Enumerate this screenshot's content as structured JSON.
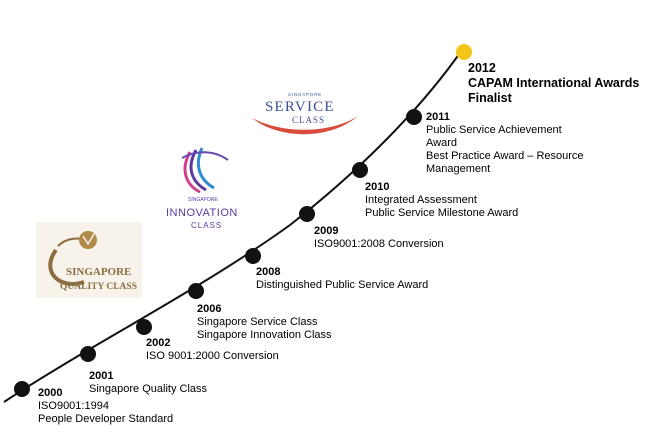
{
  "milestones": [
    {
      "year": "2000",
      "items": [
        "ISO9001:1994",
        "People Developer Standard"
      ]
    },
    {
      "year": "2001",
      "items": [
        "Singapore Quality Class"
      ]
    },
    {
      "year": "2002",
      "items": [
        "ISO 9001:2000 Conversion"
      ]
    },
    {
      "year": "2006",
      "items": [
        "Singapore Service Class",
        "Singapore Innovation Class"
      ]
    },
    {
      "year": "2008",
      "items": [
        "Distinguished Public Service Award"
      ]
    },
    {
      "year": "2009",
      "items": [
        "ISO9001:2008 Conversion"
      ]
    },
    {
      "year": "2010",
      "items": [
        "Integrated Assessment",
        "Public Service Milestone Award"
      ]
    },
    {
      "year": "2011",
      "items": [
        "Public Service Achievement",
        "Award",
        "Best Practice Award – Resource",
        "Management"
      ]
    },
    {
      "year": "2012",
      "items": [
        "CAPAM International Awards",
        "Finalist"
      ]
    }
  ],
  "logos": {
    "quality": {
      "line1": "SINGAPORE",
      "line2": "QUALITY CLASS"
    },
    "innovation": {
      "small": "SINGAPORE",
      "main": "INNOVATION",
      "sub": "CLASS"
    },
    "service": {
      "small": "SINGAPORE",
      "main": "SERVICE",
      "sub": "CLASS"
    }
  },
  "colors": {
    "dot": "#111111",
    "highlight_dot": "#f5c518",
    "curve": "#111111",
    "quality_logo": "#8b6d3f",
    "innovation_logo": "#5a3aa0",
    "service_logo": "#3a4f9a",
    "service_swoosh": "#d94b3a"
  }
}
